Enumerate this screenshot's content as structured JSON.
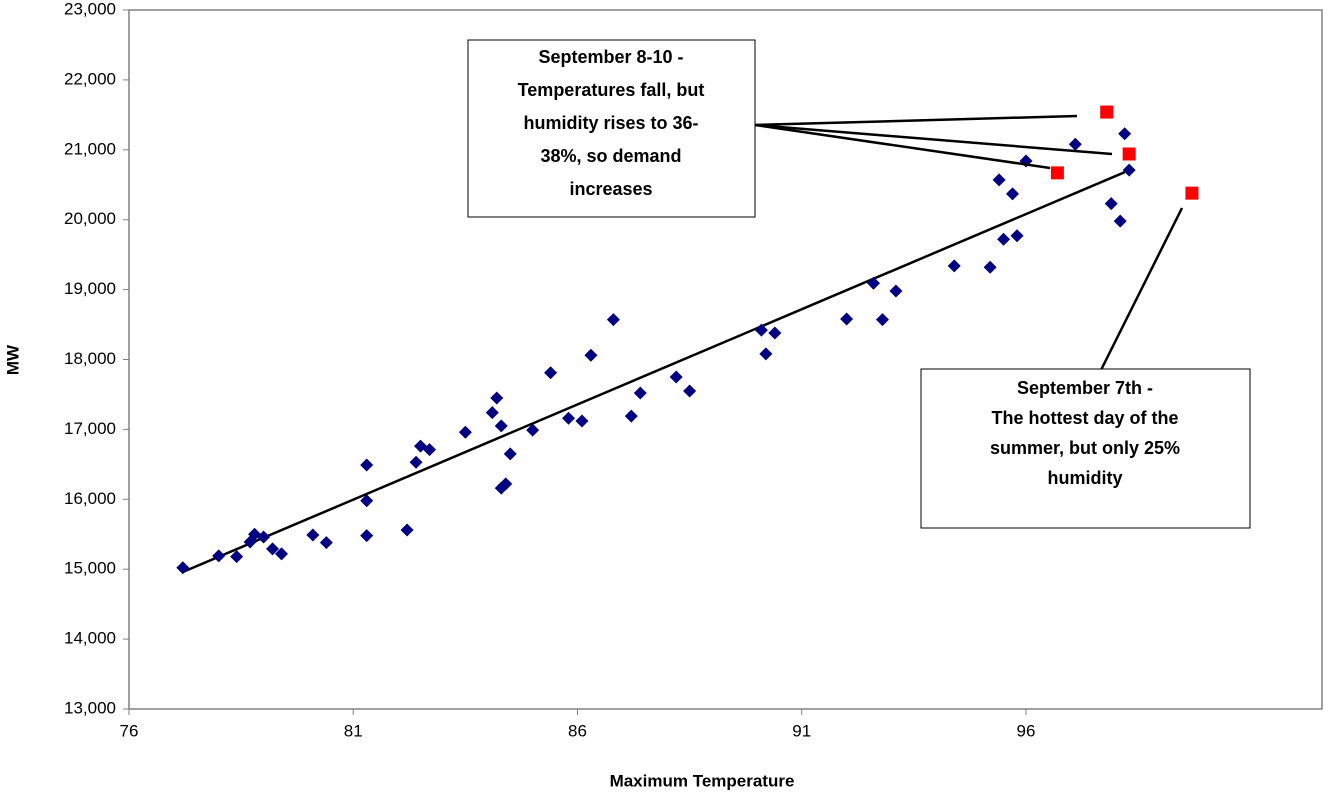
{
  "chart_data": {
    "type": "scatter",
    "x_label": "Maximum Temperature",
    "y_label": "MW",
    "xlim": [
      76,
      102.6
    ],
    "ylim": [
      13000,
      23000
    ],
    "xticks": [
      76,
      81,
      86,
      91,
      96
    ],
    "yticks": [
      {
        "value": 13000,
        "label": "13,000"
      },
      {
        "value": 14000,
        "label": "14,000"
      },
      {
        "value": 15000,
        "label": "15,000"
      },
      {
        "value": 16000,
        "label": "16,000"
      },
      {
        "value": 17000,
        "label": "17,000"
      },
      {
        "value": 18000,
        "label": "18,000"
      },
      {
        "value": 19000,
        "label": "19,000"
      },
      {
        "value": 20000,
        "label": "20,000"
      },
      {
        "value": 21000,
        "label": "21,000"
      },
      {
        "value": 22000,
        "label": "22,000"
      },
      {
        "value": 23000,
        "label": "23,000"
      }
    ],
    "grid": false,
    "series": [
      {
        "color": "#000080",
        "marker": "diamond",
        "x": [
          77.2,
          78.0,
          78.4,
          78.7,
          78.8,
          79.0,
          79.2,
          79.4,
          80.1,
          80.4,
          81.3,
          81.3,
          81.3,
          82.2,
          82.4,
          82.5,
          82.7,
          83.5,
          84.1,
          84.2,
          84.3,
          84.3,
          84.4,
          84.5,
          85.0,
          85.4,
          85.8,
          86.1,
          86.3,
          86.8,
          87.2,
          87.4,
          88.2,
          88.5,
          90.1,
          90.2,
          90.4,
          92.0,
          92.6,
          92.8,
          93.1,
          94.4,
          95.2,
          95.4,
          95.5,
          95.7,
          95.8,
          96.0,
          97.1,
          97.9,
          98.1,
          98.2,
          98.3
        ],
        "y": [
          15020,
          15190,
          15180,
          15390,
          15500,
          15460,
          15290,
          15220,
          15490,
          15380,
          16490,
          15480,
          15980,
          15560,
          16530,
          16760,
          16710,
          16960,
          17240,
          17450,
          17050,
          16160,
          16220,
          16650,
          16990,
          17810,
          17160,
          17120,
          18060,
          18570,
          17190,
          17520,
          17750,
          17550,
          18420,
          18080,
          18380,
          18580,
          19090,
          18570,
          18980,
          19340,
          19320,
          20570,
          19720,
          20370,
          19770,
          20840,
          21080,
          20230,
          19980,
          21230,
          20710
        ]
      },
      {
        "color": "#ff0000",
        "marker": "square",
        "x": [
          96.7,
          97.8,
          98.3,
          99.7
        ],
        "y": [
          20670,
          21540,
          20940,
          20380
        ]
      }
    ],
    "trendline": {
      "color": "#000000",
      "x": [
        77.2,
        98.2
      ],
      "y": [
        14960,
        20680
      ]
    },
    "annotations": [
      {
        "lines": [
          "September 8-10 -",
          "Temperatures fall, but",
          "humidity rises to 36-",
          "38%, so demand",
          "increases"
        ]
      },
      {
        "lines": [
          "September 7th -",
          "The hottest day of the",
          "summer, but only 25%",
          "humidity"
        ]
      }
    ]
  }
}
